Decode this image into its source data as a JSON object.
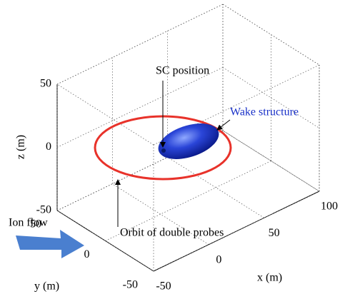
{
  "chart_data": {
    "type": "surface3d",
    "xlabel": "x (m)",
    "ylabel": "y (m)",
    "zlabel": "z (m)",
    "xlim": [
      -50,
      100
    ],
    "ylim": [
      -50,
      50
    ],
    "zlim": [
      -50,
      50
    ],
    "xticks": [
      -50,
      0,
      50,
      100
    ],
    "yticks": [
      -50,
      0,
      50
    ],
    "zticks": [
      -50,
      0,
      50
    ],
    "grid": true,
    "annotations": [
      "SC position",
      "Wake structure",
      "Orbit of double probes",
      "Ion flow"
    ]
  }
}
